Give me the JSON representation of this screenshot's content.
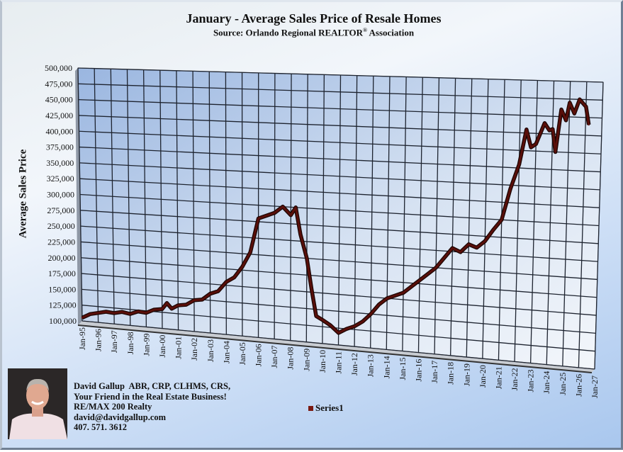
{
  "chart_data": {
    "type": "line",
    "title": "January - Average Sales Price of Resale Homes",
    "subtitle_prefix": "Source: Orlando Regional REALTOR",
    "subtitle_sup": "®",
    "subtitle_suffix": " Association",
    "xlabel": "",
    "ylabel": "Average Sales Price",
    "ylim": [
      100000,
      500000
    ],
    "yticks": [
      "100,000",
      "125,000",
      "150,000",
      "175,000",
      "200,000",
      "225,000",
      "250,000",
      "275,000",
      "300,000",
      "325,000",
      "350,000",
      "375,000",
      "400,000",
      "425,000",
      "450,000",
      "475,000",
      "500,000"
    ],
    "xticks": [
      "Jan-95",
      "Jan-96",
      "Jan-97",
      "Jan-98",
      "Jan-99",
      "Jan-00",
      "Jan-01",
      "Jan-02",
      "Jan-03",
      "Jan-04",
      "Jan-05",
      "Jan-06",
      "Jan-07",
      "Jan-08",
      "Jan-09",
      "Jan-10",
      "Jan-11",
      "Jan-12",
      "Jan-13",
      "Jan-14",
      "Jan-15",
      "Jan-16",
      "Jan-17",
      "Jan-18",
      "Jan-19",
      "Jan-20",
      "Jan-21",
      "Jan-22",
      "Jan-23",
      "Jan-24",
      "Jan-25",
      "Jan-26",
      "Jan-27"
    ],
    "grid": true,
    "three_d": true,
    "legend_position": "bottom",
    "series": [
      {
        "name": "Series1",
        "color": "#5a0f0a",
        "x": [
          1995.0,
          1995.5,
          1996.0,
          1996.5,
          1997.0,
          1997.5,
          1998.0,
          1998.5,
          1999.0,
          1999.5,
          2000.0,
          2000.3,
          2000.6,
          2001.0,
          2001.5,
          2002.0,
          2002.5,
          2003.0,
          2003.5,
          2004.0,
          2004.5,
          2005.0,
          2005.5,
          2006.0,
          2006.5,
          2007.0,
          2007.5,
          2008.0,
          2008.3,
          2008.6,
          2009.0,
          2009.3,
          2009.6,
          2010.0,
          2010.5,
          2011.0,
          2011.5,
          2012.0,
          2012.5,
          2013.0,
          2013.5,
          2014.0,
          2014.5,
          2015.0,
          2015.5,
          2016.0,
          2016.5,
          2017.0,
          2017.5,
          2018.0,
          2018.5,
          2019.0,
          2019.5,
          2020.0,
          2020.5,
          2021.0,
          2021.5,
          2022.0,
          2022.4,
          2022.7,
          2023.0,
          2023.5,
          2023.8,
          2024.0,
          2024.2,
          2024.5,
          2024.8,
          2025.0,
          2025.3,
          2025.6,
          2026.0,
          2026.2
        ],
        "values": [
          105000,
          112000,
          115000,
          118000,
          117000,
          120000,
          118000,
          123000,
          122000,
          128000,
          130000,
          140000,
          132000,
          138000,
          140000,
          148000,
          150000,
          160000,
          165000,
          180000,
          188000,
          205000,
          228000,
          280000,
          285000,
          290000,
          300000,
          288000,
          300000,
          260000,
          225000,
          180000,
          140000,
          135000,
          128000,
          118000,
          125000,
          130000,
          138000,
          150000,
          165000,
          175000,
          180000,
          185000,
          195000,
          205000,
          215000,
          225000,
          240000,
          255000,
          250000,
          262000,
          258000,
          268000,
          285000,
          300000,
          345000,
          380000,
          430000,
          405000,
          410000,
          440000,
          430000,
          432000,
          400000,
          460000,
          445000,
          470000,
          455000,
          475000,
          465000,
          440000
        ]
      }
    ]
  },
  "contact": {
    "line1": "David Gallup  ABR, CRP, CLHMS, CRS,",
    "line2": "Your Friend in the Real Estate Business!",
    "line3": "RE/MAX 200 Realty",
    "line4": "david@davidgallup.com",
    "line5": "407. 571. 3612"
  },
  "legend": {
    "label": "Series1",
    "color": "#7a1a12"
  }
}
